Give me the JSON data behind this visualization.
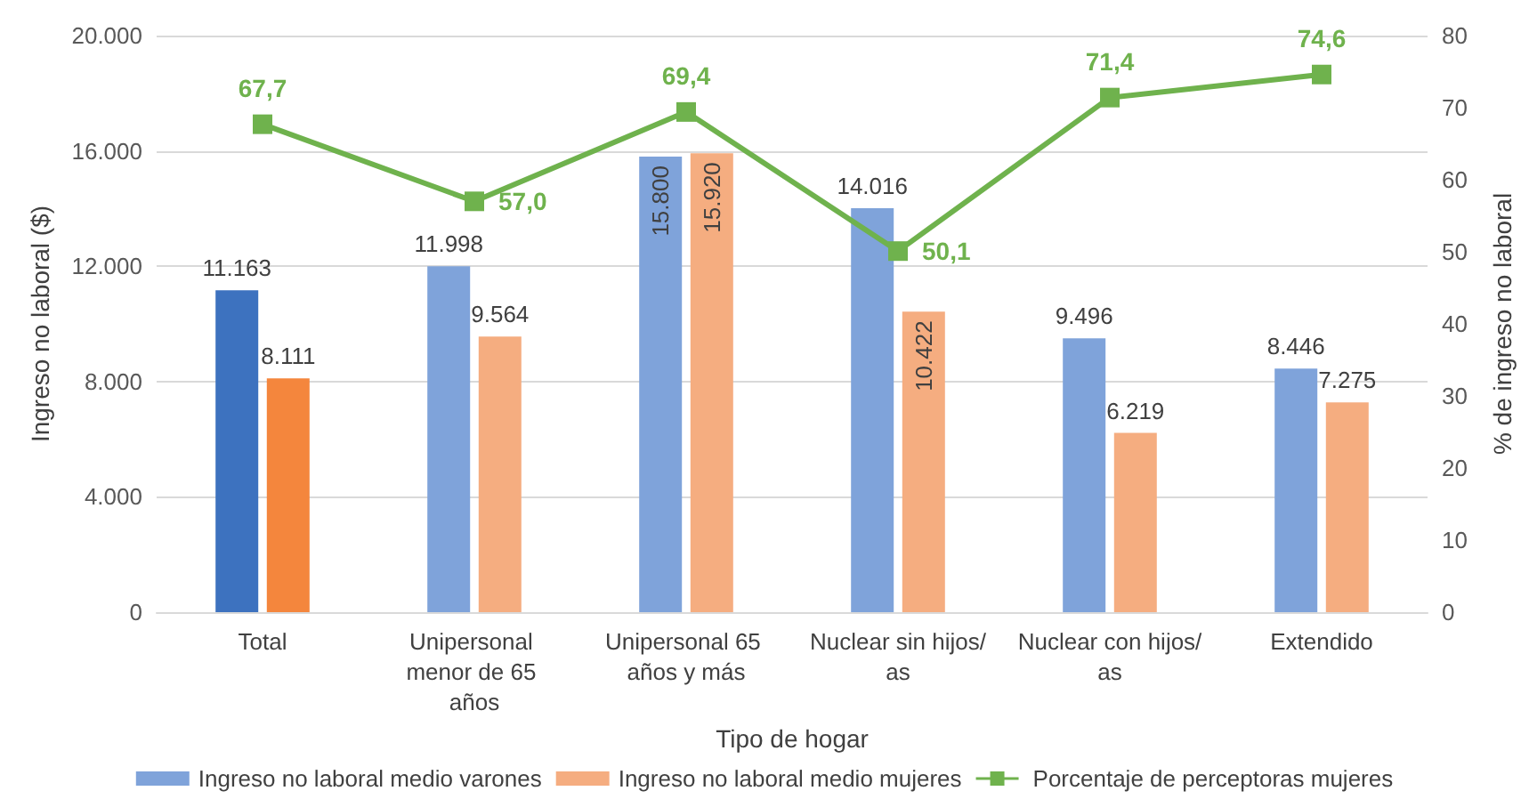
{
  "chart_data": {
    "type": "bar",
    "categories": [
      "Total",
      "Unipersonal menor de 65 años",
      "Unipersonal 65 años y más",
      "Nuclear sin hijos/as",
      "Nuclear con hijos/as",
      "Extendido"
    ],
    "xlabel": "Tipo de hogar",
    "ylabel": "Ingreso no laboral ($)",
    "y2label": "% de ingreso no laboral",
    "series": [
      {
        "name": "Ingreso no laboral medio varones",
        "type": "bar",
        "color": "#7fa3da",
        "colors": [
          "#3d72bf",
          "#7fa3da",
          "#7fa3da",
          "#7fa3da",
          "#7fa3da",
          "#7fa3da"
        ],
        "values": [
          11163,
          11998,
          15800,
          14016,
          9496,
          8446
        ],
        "value_labels": [
          "11.163",
          "11.998",
          "15.800",
          "14.016",
          "9.496",
          "8.446"
        ]
      },
      {
        "name": "Ingreso no laboral medio mujeres",
        "type": "bar",
        "color": "#f5ad80",
        "colors": [
          "#f4863d",
          "#f5ad80",
          "#f5ad80",
          "#f5ad80",
          "#f5ad80",
          "#f5ad80"
        ],
        "values": [
          8111,
          9564,
          15920,
          10422,
          6219,
          7275
        ],
        "value_labels": [
          "8.111",
          "9.564",
          "15.920",
          "10.422",
          "6.219",
          "7.275"
        ]
      },
      {
        "name": "Porcentaje de perceptoras mujeres",
        "type": "line",
        "axis": "y2",
        "color": "#6fb24d",
        "values": [
          67.7,
          57.0,
          69.4,
          50.1,
          71.4,
          74.6
        ],
        "value_labels": [
          "67,7",
          "57,0",
          "69,4",
          "50,1",
          "71,4",
          "74,6"
        ]
      }
    ],
    "ylim": [
      0,
      20000
    ],
    "yticks": [
      0,
      {
        "value": 4000,
        "label": "4.000"
      },
      {
        "value": 8000,
        "label": "8.000"
      },
      {
        "value": 12000,
        "label": "12.000"
      },
      {
        "value": 16000,
        "label": "16.000"
      },
      {
        "value": 20000,
        "label": "20.000"
      }
    ],
    "y2lim": [
      0,
      80
    ],
    "y2ticks": [
      0,
      10,
      20,
      30,
      40,
      50,
      60,
      70,
      80
    ],
    "grid": "y",
    "legend": "bottom",
    "marker": "square",
    "line_style": "solid"
  }
}
